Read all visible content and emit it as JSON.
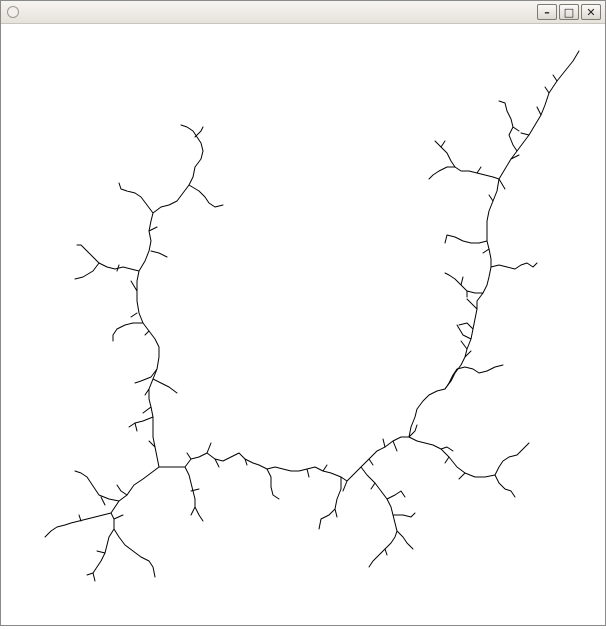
{
  "window": {
    "title": "",
    "icon": "window-icon",
    "controls": [
      {
        "name": "minimize-button",
        "icon": "minimize-icon",
        "glyph": "–"
      },
      {
        "name": "maximize-button",
        "icon": "maximize-icon",
        "glyph": "□"
      },
      {
        "name": "close-button",
        "icon": "close-icon",
        "glyph": "✕"
      }
    ]
  },
  "canvas": {
    "content": "fractal-tree-drawing",
    "stroke_color": "#000000",
    "background": "#ffffff"
  }
}
